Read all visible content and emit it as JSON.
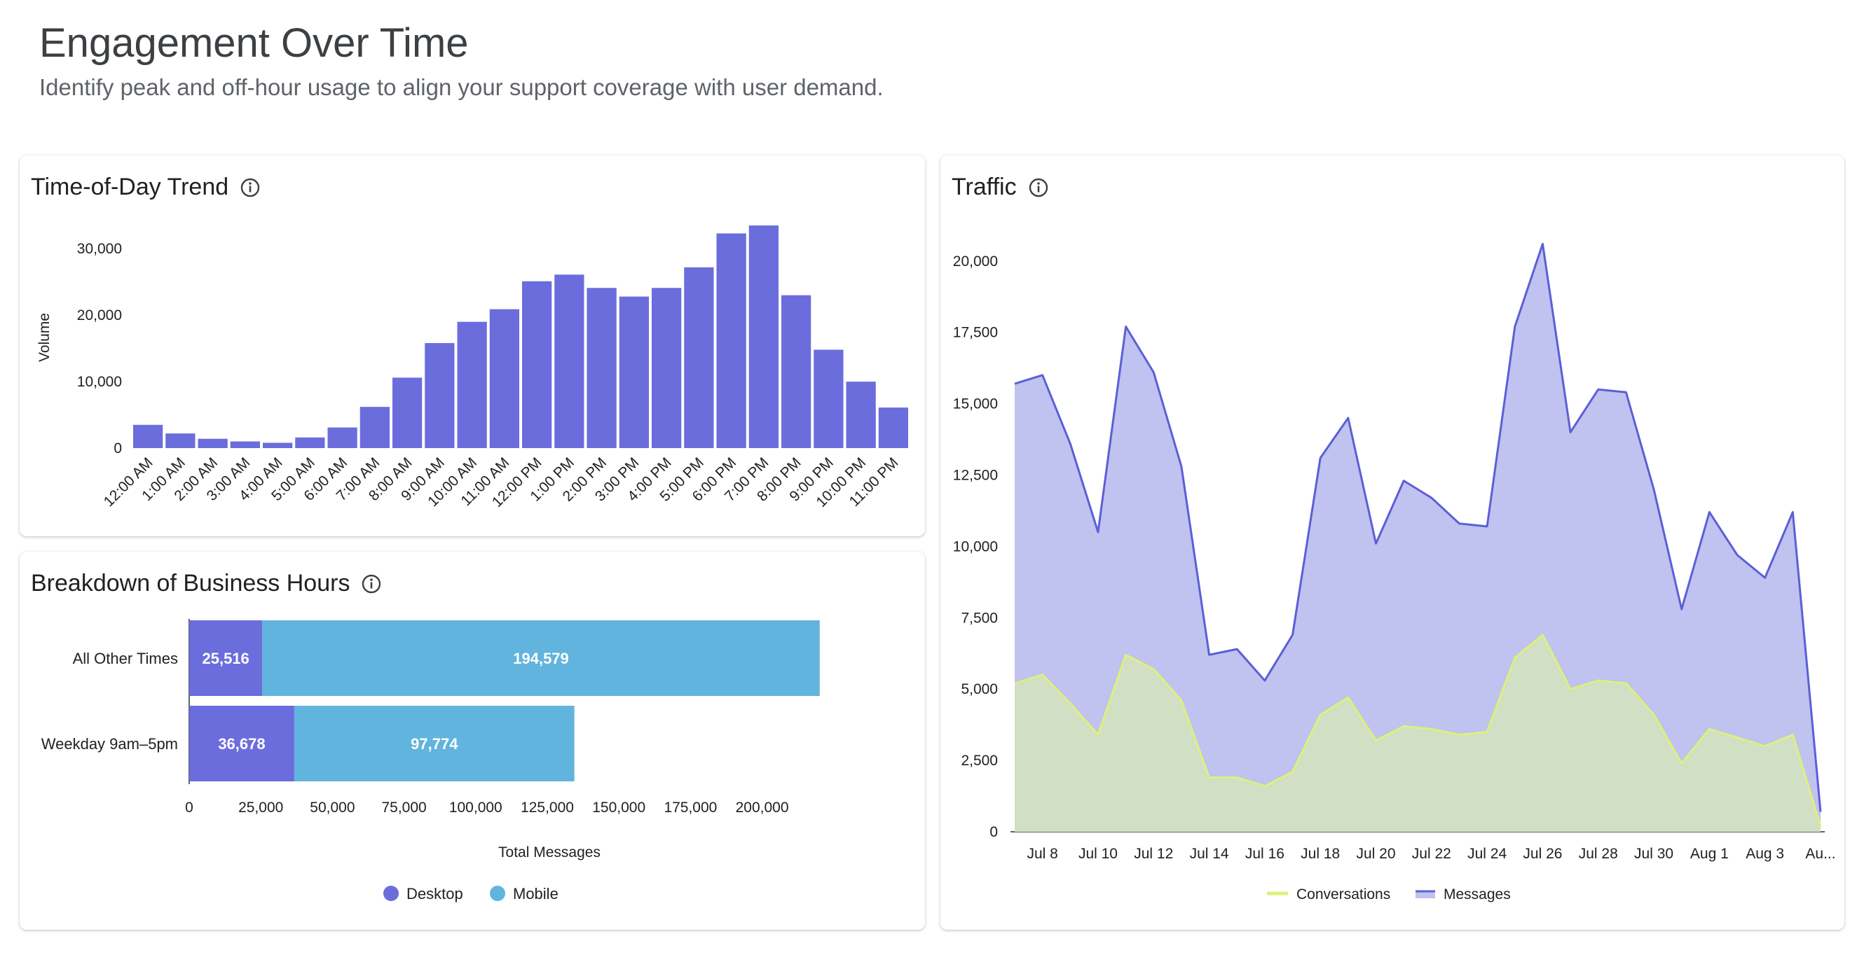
{
  "header": {
    "title": "Engagement Over Time",
    "subtitle": "Identify peak and off-hour usage to align your support coverage with user demand."
  },
  "cards": {
    "time_of_day": {
      "title": "Time-of-Day Trend",
      "info_icon": "info-icon"
    },
    "business_hours": {
      "title": "Breakdown of Business Hours",
      "info_icon": "info-icon"
    },
    "traffic": {
      "title": "Traffic",
      "info_icon": "info-icon"
    }
  },
  "colors": {
    "desktop": "#6b6ddc",
    "mobile": "#61b4de",
    "messages_line": "#5b5fd6",
    "messages_fill": "#c0c2f0",
    "conversations_line": "#dff07a",
    "conversations_fill": "#d1dfc4"
  },
  "chart_data": [
    {
      "id": "time_of_day",
      "type": "bar",
      "title": "Time-of-Day Trend",
      "xlabel": "",
      "ylabel": "Volume",
      "ylim": [
        0,
        33500
      ],
      "yticks": [
        0,
        10000,
        20000,
        30000
      ],
      "ytick_labels": [
        "0",
        "10,000",
        "20,000",
        "30,000"
      ],
      "categories": [
        "12:00 AM",
        "1:00 AM",
        "2:00 AM",
        "3:00 AM",
        "4:00 AM",
        "5:00 AM",
        "6:00 AM",
        "7:00 AM",
        "8:00 AM",
        "9:00 AM",
        "10:00 AM",
        "11:00 AM",
        "12:00 PM",
        "1:00 PM",
        "2:00 PM",
        "3:00 PM",
        "4:00 PM",
        "5:00 PM",
        "6:00 PM",
        "7:00 PM",
        "8:00 PM",
        "9:00 PM",
        "10:00 PM",
        "11:00 PM"
      ],
      "values": [
        3500,
        2200,
        1400,
        1000,
        800,
        1600,
        3100,
        6200,
        10600,
        15800,
        19000,
        20900,
        25100,
        26100,
        24100,
        22800,
        24100,
        27200,
        32300,
        33500,
        23000,
        14800,
        10000,
        6100
      ],
      "grid": false
    },
    {
      "id": "business_hours",
      "type": "bar",
      "orientation": "horizontal",
      "stacked": true,
      "title": "Breakdown of Business Hours",
      "xlabel": "Total Messages",
      "xlim": [
        0,
        225000
      ],
      "xticks": [
        0,
        25000,
        50000,
        75000,
        100000,
        125000,
        150000,
        175000,
        200000
      ],
      "xtick_labels": [
        "0",
        "25,000",
        "50,000",
        "75,000",
        "100,000",
        "125,000",
        "150,000",
        "175,000",
        "200,000"
      ],
      "categories": [
        "All Other Times",
        "Weekday 9am–5pm"
      ],
      "series": [
        {
          "name": "Desktop",
          "values": [
            25516,
            36678
          ],
          "labels": [
            "25,516",
            "36,678"
          ]
        },
        {
          "name": "Mobile",
          "values": [
            194579,
            97774
          ],
          "labels": [
            "194,579",
            "97,774"
          ]
        }
      ],
      "legend": "bottom-center"
    },
    {
      "id": "traffic",
      "type": "area",
      "title": "Traffic",
      "ylim": [
        0,
        21000
      ],
      "yticks": [
        0,
        2500,
        5000,
        7500,
        10000,
        12500,
        15000,
        17500,
        20000
      ],
      "ytick_labels": [
        "0",
        "2,500",
        "5,000",
        "7,500",
        "10,000",
        "12,500",
        "15,000",
        "17,500",
        "20,000"
      ],
      "x": [
        "Jul 7",
        "Jul 8",
        "Jul 9",
        "Jul 10",
        "Jul 11",
        "Jul 12",
        "Jul 13",
        "Jul 14",
        "Jul 15",
        "Jul 16",
        "Jul 17",
        "Jul 18",
        "Jul 19",
        "Jul 20",
        "Jul 21",
        "Jul 22",
        "Jul 23",
        "Jul 24",
        "Jul 25",
        "Jul 26",
        "Jul 27",
        "Jul 28",
        "Jul 29",
        "Jul 30",
        "Jul 31",
        "Aug 1",
        "Aug 2",
        "Aug 3",
        "Aug 4",
        "Aug 5"
      ],
      "xtick_labels": [
        "Jul 8",
        "Jul 10",
        "Jul 12",
        "Jul 14",
        "Jul 16",
        "Jul 18",
        "Jul 20",
        "Jul 22",
        "Jul 24",
        "Jul 26",
        "Jul 28",
        "Jul 30",
        "Aug 1",
        "Aug 3",
        "Au..."
      ],
      "xtick_dates": [
        "Jul 8",
        "Jul 10",
        "Jul 12",
        "Jul 14",
        "Jul 16",
        "Jul 18",
        "Jul 20",
        "Jul 22",
        "Jul 24",
        "Jul 26",
        "Jul 28",
        "Jul 30",
        "Aug 1",
        "Aug 3",
        "Aug 5"
      ],
      "series": [
        {
          "name": "Messages",
          "values": [
            15700,
            16000,
            13600,
            10500,
            17700,
            16100,
            12800,
            6200,
            6400,
            5300,
            6900,
            13100,
            14500,
            10100,
            12300,
            11700,
            10800,
            10700,
            17700,
            20600,
            14000,
            15500,
            15400,
            12000,
            7800,
            11200,
            9700,
            8900,
            11200,
            700
          ]
        },
        {
          "name": "Conversations",
          "values": [
            5200,
            5500,
            4500,
            3400,
            6200,
            5700,
            4600,
            1900,
            1900,
            1600,
            2100,
            4100,
            4700,
            3200,
            3700,
            3600,
            3400,
            3500,
            6100,
            6900,
            5000,
            5300,
            5200,
            4100,
            2400,
            3600,
            3300,
            3000,
            3400,
            200
          ]
        }
      ],
      "legend": "bottom-center",
      "grid": false
    }
  ]
}
